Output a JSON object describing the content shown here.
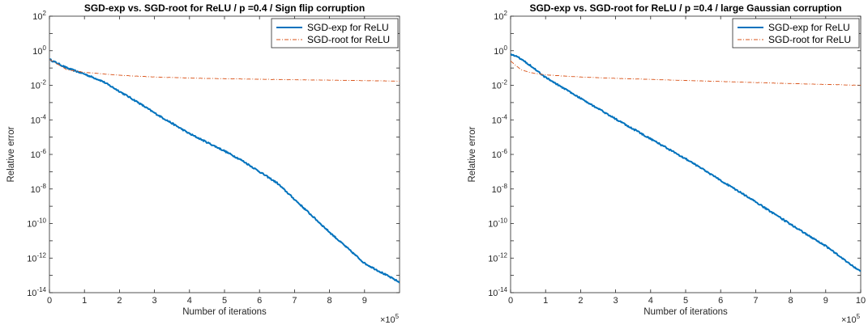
{
  "chart_data": [
    {
      "type": "line",
      "title": "SGD-exp vs. SGD-root for ReLU / p =0.4 / Sign flip corruption",
      "xlabel": "Number of iterations",
      "ylabel": "Relative error",
      "x_multiplier_label": "×10",
      "x_multiplier_exp": "5",
      "xlim": [
        0,
        10
      ],
      "ylim_log10": [
        -14,
        2
      ],
      "yscale": "log",
      "grid": false,
      "legend_position": "top-right",
      "xticks": [
        "0",
        "1",
        "2",
        "3",
        "4",
        "5",
        "6",
        "7",
        "8",
        "9"
      ],
      "yticks": [
        {
          "base": "10",
          "exp": "2"
        },
        {
          "base": "10",
          "exp": "0"
        },
        {
          "base": "10",
          "exp": "-2"
        },
        {
          "base": "10",
          "exp": "-4"
        },
        {
          "base": "10",
          "exp": "-6"
        },
        {
          "base": "10",
          "exp": "-8"
        },
        {
          "base": "10",
          "exp": "-10"
        },
        {
          "base": "10",
          "exp": "-12"
        },
        {
          "base": "10",
          "exp": "-14"
        }
      ],
      "series": [
        {
          "name": "SGD-exp for ReLU",
          "color": "#0072BD",
          "style": "solid",
          "x": [
            0,
            0.5,
            1,
            1.5,
            2,
            2.5,
            3,
            3.5,
            4,
            4.5,
            5,
            5.5,
            6,
            6.5,
            7,
            7.5,
            8,
            8.5,
            9,
            9.5,
            10
          ],
          "y_log10": [
            -0.5,
            -1.0,
            -1.35,
            -1.75,
            -2.35,
            -2.95,
            -3.6,
            -4.2,
            -4.8,
            -5.3,
            -5.8,
            -6.35,
            -7.0,
            -7.65,
            -8.6,
            -9.55,
            -10.5,
            -11.4,
            -12.3,
            -12.85,
            -13.4
          ]
        },
        {
          "name": "SGD-root for ReLU",
          "color": "#D95319",
          "style": "dashdot",
          "x": [
            0,
            0.5,
            1,
            2,
            3,
            4,
            5,
            6,
            7,
            8,
            9,
            10
          ],
          "y_log10": [
            -0.5,
            -1.1,
            -1.25,
            -1.42,
            -1.52,
            -1.58,
            -1.62,
            -1.65,
            -1.68,
            -1.7,
            -1.73,
            -1.76
          ]
        }
      ]
    },
    {
      "type": "line",
      "title": "SGD-exp vs. SGD-root for ReLU / p =0.4 / large Gaussian corruption",
      "xlabel": "Number of iterations",
      "ylabel": "Relative error",
      "x_multiplier_label": "×10",
      "x_multiplier_exp": "5",
      "xlim": [
        0,
        10
      ],
      "ylim_log10": [
        -14,
        2
      ],
      "yscale": "log",
      "grid": false,
      "legend_position": "top-right",
      "xticks": [
        "0",
        "1",
        "2",
        "3",
        "4",
        "5",
        "6",
        "7",
        "8",
        "9",
        "10"
      ],
      "yticks": [
        {
          "base": "10",
          "exp": "2"
        },
        {
          "base": "10",
          "exp": "0"
        },
        {
          "base": "10",
          "exp": "-2"
        },
        {
          "base": "10",
          "exp": "-4"
        },
        {
          "base": "10",
          "exp": "-6"
        },
        {
          "base": "10",
          "exp": "-8"
        },
        {
          "base": "10",
          "exp": "-10"
        },
        {
          "base": "10",
          "exp": "-12"
        },
        {
          "base": "10",
          "exp": "-14"
        }
      ],
      "series": [
        {
          "name": "SGD-exp for ReLU",
          "color": "#0072BD",
          "style": "solid",
          "x": [
            0,
            0.2,
            0.5,
            1,
            2,
            3,
            4,
            5,
            6,
            7,
            8,
            9,
            10
          ],
          "y_log10": [
            -0.2,
            -0.35,
            -0.75,
            -1.55,
            -2.75,
            -3.95,
            -5.1,
            -6.25,
            -7.5,
            -8.75,
            -10.05,
            -11.3,
            -12.8
          ]
        },
        {
          "name": "SGD-root for ReLU",
          "color": "#D95319",
          "style": "dashdot",
          "x": [
            0,
            0.3,
            0.6,
            1,
            2,
            3,
            4,
            5,
            6,
            7,
            8,
            9,
            10
          ],
          "y_log10": [
            -0.6,
            -1.1,
            -1.28,
            -1.4,
            -1.52,
            -1.6,
            -1.66,
            -1.72,
            -1.78,
            -1.84,
            -1.9,
            -1.95,
            -2.0
          ]
        }
      ]
    }
  ]
}
